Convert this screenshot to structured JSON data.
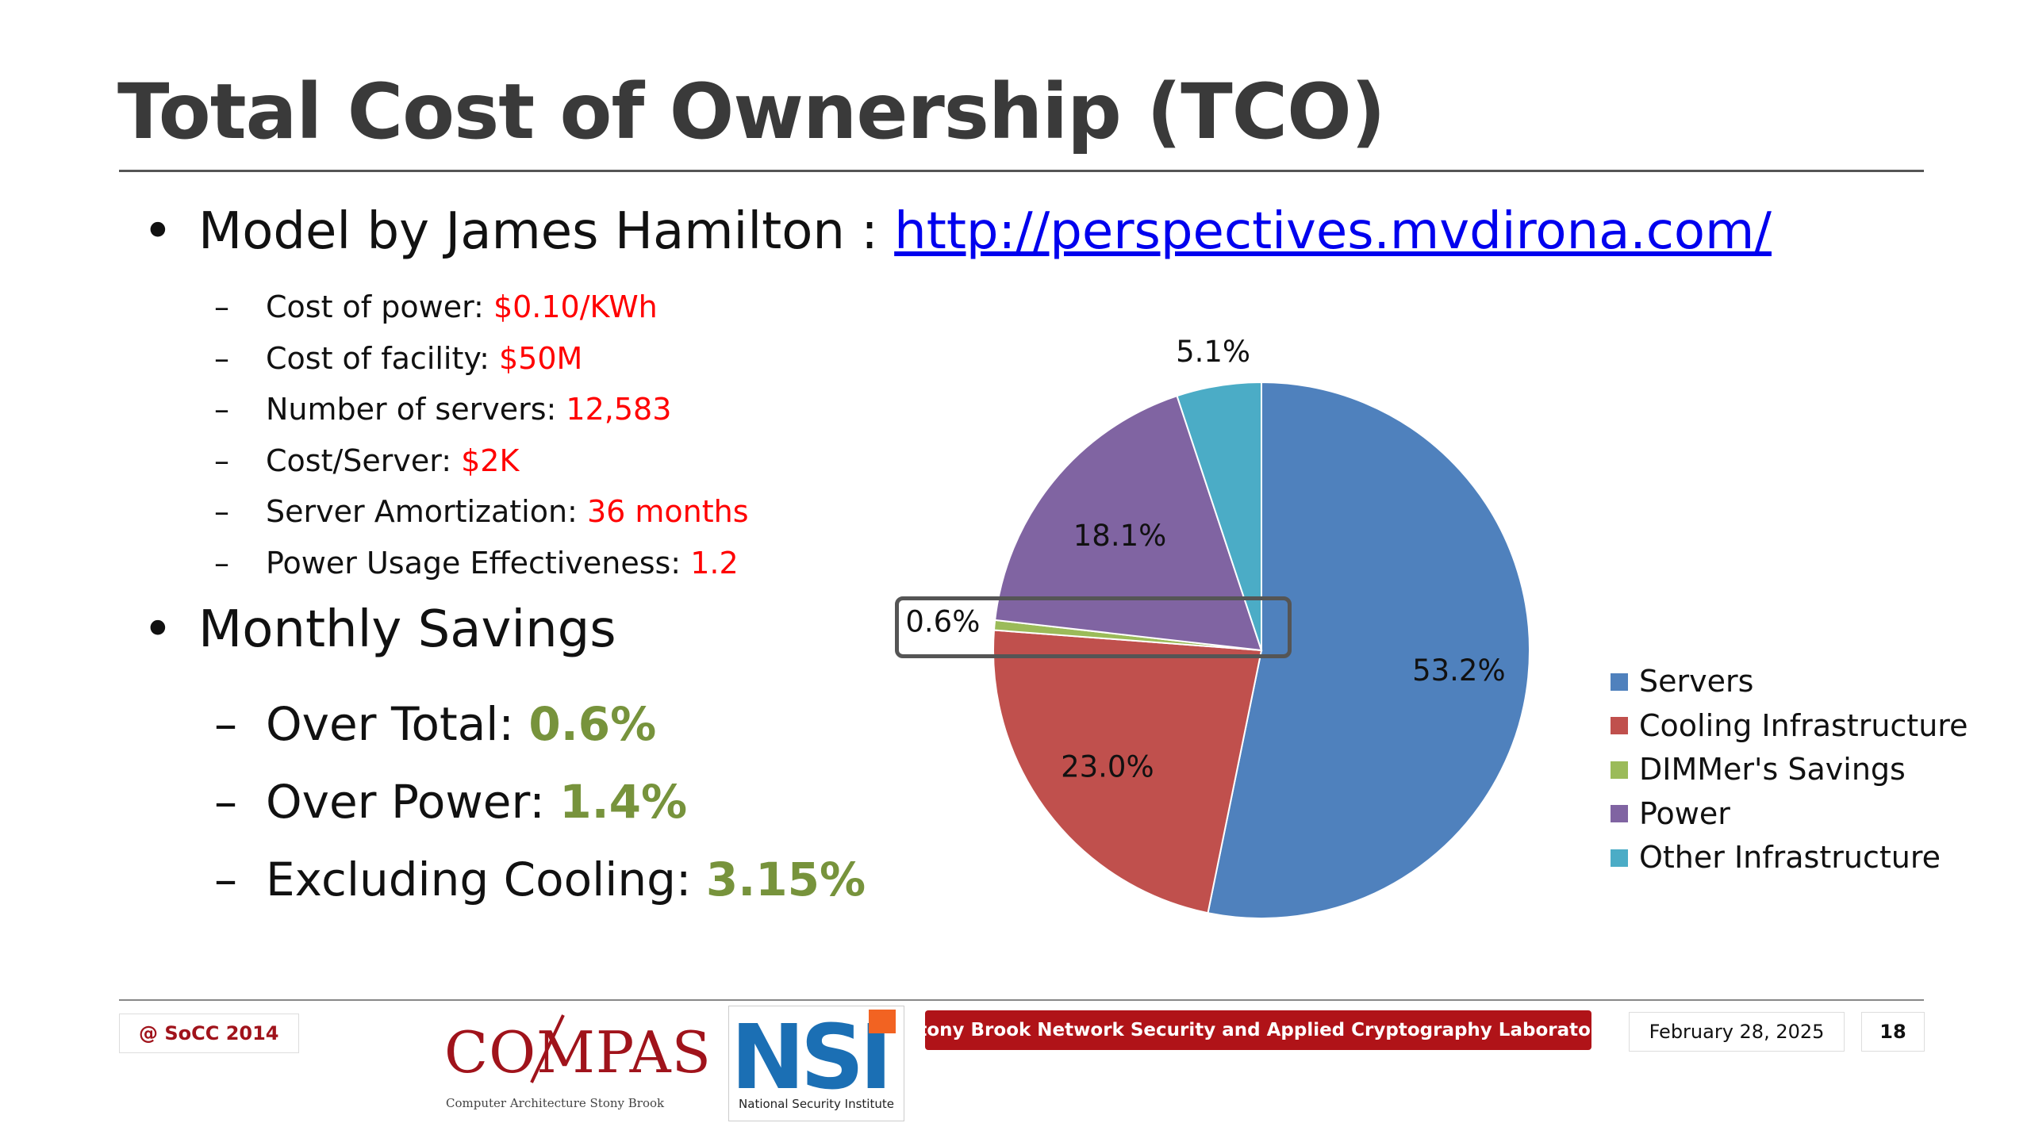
{
  "slide": {
    "title": "Total Cost of Ownership (TCO)",
    "bullet1": {
      "dot": "•",
      "text": "Model by James Hamilton : ",
      "link": "http://perspectives.mvdirona.com/"
    },
    "params": [
      {
        "dash": "–",
        "label": "Cost of power: ",
        "value": "$0.10/KWh"
      },
      {
        "dash": "–",
        "label": "Cost of facility: ",
        "value": "$50M"
      },
      {
        "dash": "–",
        "label": "Number of servers: ",
        "value": "12,583"
      },
      {
        "dash": "–",
        "label": "Cost/Server: ",
        "value": "$2K"
      },
      {
        "dash": "–",
        "label": "Server Amortization: ",
        "value": "36 months"
      },
      {
        "dash": "–",
        "label": "Power Usage Effectiveness: ",
        "value": "1.2"
      }
    ],
    "bullet2": {
      "dot": "•",
      "text": "Monthly Savings"
    },
    "savings": [
      {
        "dash": "–",
        "label": "Over Total: ",
        "value": "0.6%"
      },
      {
        "dash": "–",
        "label": "Over Power: ",
        "value": "1.4%"
      },
      {
        "dash": "–",
        "label": "Excluding Cooling: ",
        "value": "3.15%"
      }
    ]
  },
  "chart_data": {
    "type": "pie",
    "title": "",
    "slices": [
      {
        "name": "Servers",
        "value": 53.2,
        "label": "53.2%",
        "color": "#4f81bd"
      },
      {
        "name": "Cooling Infrastructure",
        "value": 23.0,
        "label": "23.0%",
        "color": "#c0504d"
      },
      {
        "name": "DIMMer's Savings",
        "value": 0.6,
        "label": "0.6%",
        "color": "#9bbb59"
      },
      {
        "name": "Power",
        "value": 18.1,
        "label": "18.1%",
        "color": "#8064a2"
      },
      {
        "name": "Other Infrastructure",
        "value": 5.1,
        "label": "5.1%",
        "color": "#4bacc6"
      }
    ],
    "start_angle_deg": 0,
    "direction": "clockwise",
    "highlighted_slice": "DIMMer's Savings",
    "legend_position": "right"
  },
  "footer": {
    "conference": "@ SoCC 2014",
    "compas_logo": "COMPAS",
    "compas_sub": "Computer Architecture Stony Brook",
    "nsi_logo": "NSI",
    "nsi_sub": "National Security Institute",
    "lab": "Stony Brook Network Security and Applied Cryptography Laboratory",
    "date": "February 28, 2025",
    "page": "18"
  }
}
